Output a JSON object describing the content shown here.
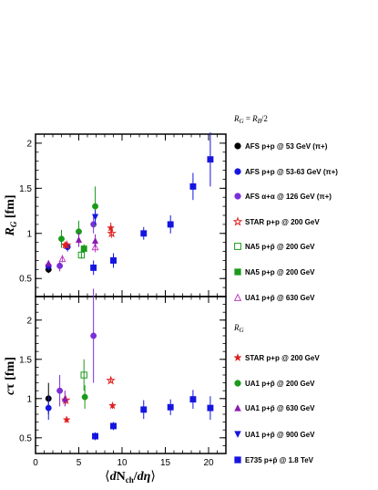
{
  "chart_data": [
    {
      "type": "scatter",
      "panel": "top",
      "ylabel": "R_G [fm]",
      "xlim": [
        0,
        22
      ],
      "ylim": [
        0.3,
        2.1
      ],
      "yticks": [
        "0.5",
        "1",
        "1.5",
        "2"
      ],
      "legend_header": "R_G = R_B/2",
      "legend_placement": "right",
      "series": [
        {
          "name": "AFS p+p @ 53 GeV (π+)",
          "marker": "circle-filled",
          "color": "#000000",
          "points": [
            {
              "x": 1.5,
              "y": 0.6,
              "err": 0.04
            }
          ]
        },
        {
          "name": "AFS p+p @ 53-63 GeV (π+)",
          "marker": "circle-filled",
          "color": "#1515e0",
          "points": [
            {
              "x": 1.5,
              "y": 0.64,
              "err": 0.05
            },
            {
              "x": 3.7,
              "y": 0.85,
              "err": 0.05
            }
          ]
        },
        {
          "name": "AFS α+α @ 126 GeV (π+)",
          "marker": "circle-filled",
          "color": "#7a2fd8",
          "points": [
            {
              "x": 2.8,
              "y": 0.64,
              "err": 0.06
            },
            {
              "x": 6.7,
              "y": 1.1,
              "err": 0.1
            }
          ]
        },
        {
          "name": "STAR p+p @ 200 GeV",
          "marker": "star-open",
          "color": "#e02020",
          "points": [
            {
              "x": 3.6,
              "y": 0.87,
              "err": 0.03
            },
            {
              "x": 8.8,
              "y": 1.0,
              "err": 0.05
            }
          ]
        },
        {
          "name": "NA5 p+p̄ @ 200 GeV",
          "marker": "square-open",
          "color": "#1a9a1a",
          "points": [
            {
              "x": 5.3,
              "y": 0.76,
              "err": 0.04
            }
          ]
        },
        {
          "name": "NA5 p+p @ 200 GeV",
          "marker": "square-filled",
          "color": "#1a9a1a",
          "points": [
            {
              "x": 5.6,
              "y": 0.83,
              "err": 0.05
            }
          ]
        },
        {
          "name": "UA1 p+p̄ @ 630 GeV",
          "marker": "triangle-open",
          "color": "#c040c0",
          "points": [
            {
              "x": 3.1,
              "y": 0.72,
              "err": 0.04
            },
            {
              "x": 6.9,
              "y": 0.85,
              "err": 0.06
            }
          ]
        },
        {
          "name": "STAR p+p @ 200 GeV",
          "marker": "star-filled",
          "color": "#e02020",
          "points": [
            {
              "x": 3.4,
              "y": 0.87,
              "err": 0.03
            },
            {
              "x": 8.7,
              "y": 1.06,
              "err": 0.06
            }
          ]
        },
        {
          "name": "UA1 p+p̄ @ 200 GeV",
          "marker": "circle-filled",
          "color": "#1a9a1a",
          "points": [
            {
              "x": 3.0,
              "y": 0.94,
              "err": 0.1
            },
            {
              "x": 5.0,
              "y": 1.02,
              "err": 0.12
            },
            {
              "x": 6.9,
              "y": 1.3,
              "err": 0.22
            }
          ]
        },
        {
          "name": "UA1 p+p̄ @ 630 GeV",
          "marker": "triangle-filled",
          "color": "#8a1ab0",
          "points": [
            {
              "x": 1.5,
              "y": 0.67,
              "err": 0.03
            },
            {
              "x": 5.0,
              "y": 0.93,
              "err": 0.08
            },
            {
              "x": 6.9,
              "y": 0.92,
              "err": 0.07
            }
          ]
        },
        {
          "name": "UA1 p+p̄ @ 900 GeV",
          "marker": "triangle-down-filled",
          "color": "#1515e0",
          "points": [
            {
              "x": 6.9,
              "y": 1.18,
              "err": 0.08
            }
          ]
        },
        {
          "name": "E735 p+p̄ @ 1.8 TeV",
          "marker": "square-filled",
          "color": "#1515e0",
          "points": [
            {
              "x": 6.7,
              "y": 0.62,
              "err": 0.08
            },
            {
              "x": 9.0,
              "y": 0.7,
              "err": 0.08
            },
            {
              "x": 12.5,
              "y": 1.0,
              "err": 0.07
            },
            {
              "x": 15.6,
              "y": 1.1,
              "err": 0.1
            },
            {
              "x": 18.2,
              "y": 1.52,
              "err": 0.15
            },
            {
              "x": 20.2,
              "y": 1.82,
              "err": 0.3
            }
          ]
        }
      ]
    },
    {
      "type": "scatter",
      "panel": "bottom",
      "xlabel": "⟨dN_ch/dη⟩",
      "ylabel": "cτ [fm]",
      "xlim": [
        0,
        22
      ],
      "ylim": [
        0.3,
        2.3
      ],
      "xticks": [
        "0",
        "5",
        "10",
        "15",
        "20"
      ],
      "yticks": [
        "0.5",
        "1",
        "1.5",
        "2"
      ],
      "legend_header": "R_G",
      "legend_placement": "right",
      "series": [
        {
          "name": "AFS p+p @ 53 GeV (π+)",
          "marker": "circle-filled",
          "color": "#000000",
          "points": [
            {
              "x": 1.5,
              "y": 1.0,
              "err": 0.2
            }
          ]
        },
        {
          "name": "AFS p+p @ 53-63 GeV (π+)",
          "marker": "circle-filled",
          "color": "#1515e0",
          "points": [
            {
              "x": 1.5,
              "y": 0.88,
              "err": 0.15
            }
          ]
        },
        {
          "name": "AFS α+α @ 126 GeV (π+)",
          "marker": "circle-filled",
          "color": "#7a2fd8",
          "points": [
            {
              "x": 2.8,
              "y": 1.1,
              "err": 0.2
            },
            {
              "x": 6.7,
              "y": 1.8,
              "err": 0.6
            }
          ]
        },
        {
          "name": "STAR p+p @ 200 GeV",
          "marker": "star-open",
          "color": "#e02020",
          "points": [
            {
              "x": 3.5,
              "y": 0.98,
              "err": 0.05
            },
            {
              "x": 8.7,
              "y": 1.23,
              "err": 0.03
            }
          ]
        },
        {
          "name": "NA5 p+p̄ @ 200 GeV",
          "marker": "square-open",
          "color": "#1a9a1a",
          "points": [
            {
              "x": 5.6,
              "y": 1.3,
              "err": 0.2
            }
          ]
        },
        {
          "name": "STAR p+p @ 200 GeV",
          "marker": "star-filled",
          "color": "#e02020",
          "points": [
            {
              "x": 3.6,
              "y": 0.73,
              "err": 0.04
            },
            {
              "x": 8.9,
              "y": 0.91,
              "err": 0.04
            }
          ]
        },
        {
          "name": "UA1 p+p̄ @ 200 GeV",
          "marker": "circle-filled",
          "color": "#1a9a1a",
          "points": [
            {
              "x": 5.7,
              "y": 1.02,
              "err": 0.15
            }
          ]
        },
        {
          "name": "UA1 p+p̄ @ 630 GeV",
          "marker": "triangle-filled",
          "color": "#8a1ab0",
          "points": [
            {
              "x": 3.4,
              "y": 1.0,
              "err": 0.1
            }
          ]
        },
        {
          "name": "E735 p+p̄ @ 1.8 TeV",
          "marker": "square-filled",
          "color": "#1515e0",
          "points": [
            {
              "x": 6.9,
              "y": 0.52,
              "err": 0.05
            },
            {
              "x": 9.0,
              "y": 0.65,
              "err": 0.05
            },
            {
              "x": 12.5,
              "y": 0.86,
              "err": 0.12
            },
            {
              "x": 15.6,
              "y": 0.89,
              "err": 0.1
            },
            {
              "x": 18.2,
              "y": 0.99,
              "err": 0.12
            },
            {
              "x": 20.2,
              "y": 0.88,
              "err": 0.15
            }
          ]
        }
      ]
    }
  ],
  "legend": {
    "header_top": "R_G = R_B/2",
    "header_mid": "R_G",
    "items": [
      {
        "label": "AFS p+p @ 53 GeV (π+)",
        "marker": "circle-filled",
        "color": "#000000"
      },
      {
        "label": "AFS p+p @ 53-63 GeV (π+)",
        "marker": "circle-filled",
        "color": "#1515e0"
      },
      {
        "label": "AFS α+α @ 126 GeV (π+)",
        "marker": "circle-filled",
        "color": "#7a2fd8"
      },
      {
        "label": "STAR p+p @ 200 GeV",
        "marker": "star-open",
        "color": "#e02020"
      },
      {
        "label": "NA5 p+p̄ @ 200 GeV",
        "marker": "square-open",
        "color": "#1a9a1a"
      },
      {
        "label": "NA5 p+p @ 200 GeV",
        "marker": "square-filled",
        "color": "#1a9a1a"
      },
      {
        "label": "UA1 p+p̄ @ 630 GeV",
        "marker": "triangle-open",
        "color": "#c040c0"
      },
      {
        "label": "STAR p+p @ 200 GeV",
        "marker": "star-filled",
        "color": "#e02020"
      },
      {
        "label": "UA1 p+p̄ @ 200 GeV",
        "marker": "circle-filled",
        "color": "#1a9a1a"
      },
      {
        "label": "UA1 p+p̄ @ 630 GeV",
        "marker": "triangle-filled",
        "color": "#8a1ab0"
      },
      {
        "label": "UA1 p+p̄ @ 900 GeV",
        "marker": "triangle-down-filled",
        "color": "#1515e0"
      },
      {
        "label": "E735 p+p̄ @ 1.8 TeV",
        "marker": "square-filled",
        "color": "#1515e0"
      }
    ]
  }
}
